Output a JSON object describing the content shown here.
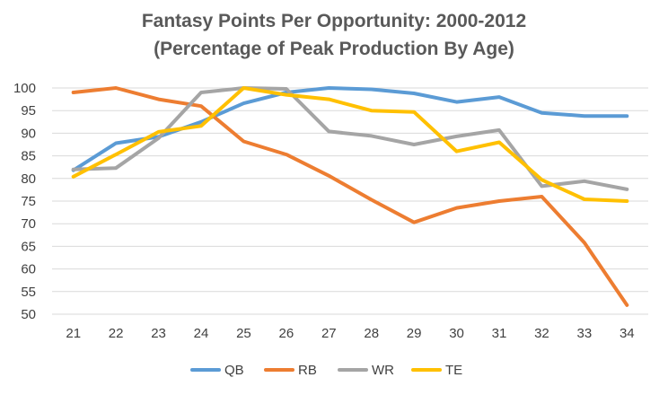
{
  "chart_data": {
    "type": "line",
    "title": "Fantasy Points Per Opportunity: 2000-2012",
    "subtitle": "(Percentage of Peak Production By Age)",
    "x": [
      "21",
      "22",
      "23",
      "24",
      "25",
      "26",
      "27",
      "28",
      "29",
      "30",
      "31",
      "32",
      "33",
      "34"
    ],
    "ylim": [
      50,
      100
    ],
    "yticks": [
      50,
      55,
      60,
      65,
      70,
      75,
      80,
      85,
      90,
      95,
      100
    ],
    "grid": true,
    "legend_position": "bottom",
    "series": [
      {
        "name": "QB",
        "color": "#5B9BD5",
        "values": [
          81.8,
          87.8,
          89.2,
          92.5,
          96.6,
          99.0,
          100.0,
          99.7,
          98.8,
          96.9,
          98.0,
          94.5,
          93.8,
          93.8
        ]
      },
      {
        "name": "RB",
        "color": "#ED7D31",
        "values": [
          99.0,
          100.0,
          97.5,
          96.0,
          88.2,
          85.3,
          80.6,
          75.3,
          70.3,
          73.5,
          75.0,
          76.0,
          65.8,
          52.0
        ]
      },
      {
        "name": "WR",
        "color": "#A5A5A5",
        "values": [
          82.0,
          82.3,
          88.9,
          99.0,
          100.0,
          99.8,
          90.4,
          89.4,
          87.5,
          89.3,
          90.7,
          78.3,
          79.4,
          77.6
        ]
      },
      {
        "name": "TE",
        "color": "#FFC000",
        "values": [
          80.4,
          85.3,
          90.3,
          91.6,
          100.0,
          98.5,
          97.5,
          95.0,
          94.7,
          86.0,
          88.0,
          79.7,
          75.4,
          75.0
        ]
      }
    ]
  }
}
